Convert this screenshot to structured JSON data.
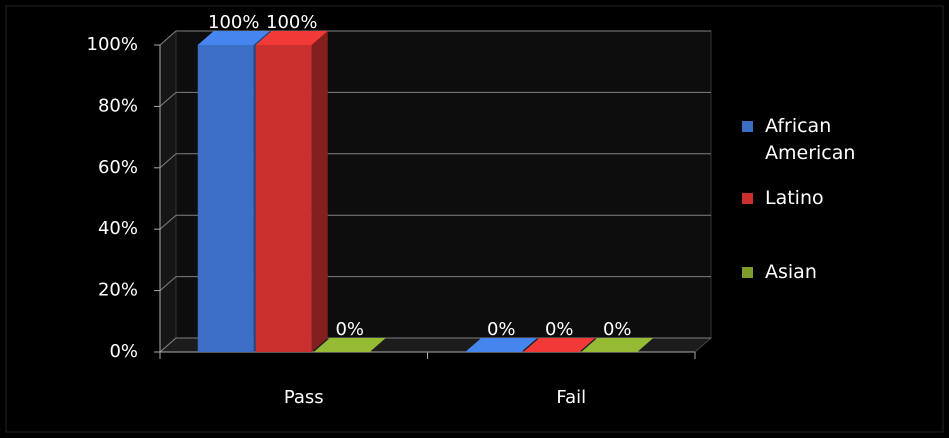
{
  "chart_data": {
    "type": "bar3d",
    "categories": [
      "Pass",
      "Fail"
    ],
    "series": [
      {
        "name": "African American",
        "color": "#3b6fc6",
        "values": [
          100,
          0
        ],
        "value_labels": [
          "100%",
          "0%"
        ]
      },
      {
        "name": "Latino",
        "color": "#c9302e",
        "values": [
          100,
          0
        ],
        "value_labels": [
          "100%",
          "0%"
        ]
      },
      {
        "name": "Asian",
        "color": "#7c9c2c",
        "values": [
          0,
          0
        ],
        "value_labels": [
          "0%",
          "0%"
        ]
      }
    ],
    "ylim": [
      0,
      100
    ],
    "yticks": [
      {
        "value": 0,
        "label": "0%"
      },
      {
        "value": 20,
        "label": "20%"
      },
      {
        "value": 40,
        "label": "40%"
      },
      {
        "value": 60,
        "label": "60%"
      },
      {
        "value": 80,
        "label": "80%"
      },
      {
        "value": 100,
        "label": "100%"
      }
    ],
    "grid": true,
    "legend": "right"
  }
}
